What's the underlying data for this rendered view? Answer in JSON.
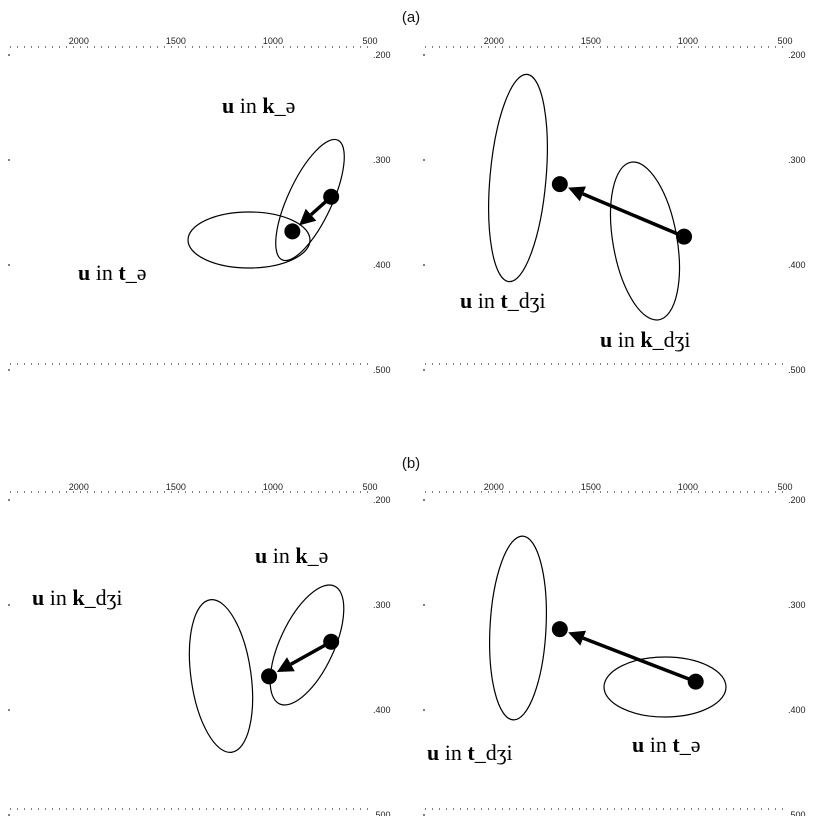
{
  "chart_data": [
    {
      "type": "scatter",
      "panel_label": "(a)",
      "x_ticks": [
        "2000",
        "1500",
        "1000",
        "500"
      ],
      "y_ticks": [
        ".200",
        ".300",
        ".400",
        ".500"
      ],
      "xlim": [
        2200,
        500
      ],
      "ylim": [
        200,
        500
      ],
      "subplots": [
        {
          "points": [
            {
              "name": "u in k_ə",
              "x": 700,
              "y": 335,
              "label": {
                "pre": "",
                "bold": "u",
                "mid": " in ",
                "bold2": "k",
                "post": "_ə"
              }
            },
            {
              "name": "u in t_ə",
              "x": 900,
              "y": 368,
              "label": {
                "pre": "",
                "bold": "u",
                "mid": " in ",
                "bold2": "t",
                "post": "_ə"
              }
            }
          ],
          "arrow": {
            "from": "u in k_ə",
            "to": "u in t_ə"
          }
        },
        {
          "points": [
            {
              "name": "u in t_dʒi",
              "x": 1660,
              "y": 323,
              "label": {
                "pre": "",
                "bold": "u",
                "mid": " in ",
                "bold2": "t",
                "post": "_dʒi"
              }
            },
            {
              "name": "u in k_dʒi",
              "x": 1020,
              "y": 373,
              "label": {
                "pre": "",
                "bold": "u",
                "mid": " in ",
                "bold2": "k",
                "post": "_dʒi"
              }
            }
          ],
          "arrow": {
            "from": "u in k_dʒi",
            "to": "u in t_dʒi"
          }
        }
      ]
    },
    {
      "type": "scatter",
      "panel_label": "(b)",
      "x_ticks": [
        "2000",
        "1500",
        "1000",
        "500"
      ],
      "y_ticks": [
        ".200",
        ".300",
        ".400",
        ".500"
      ],
      "xlim": [
        2200,
        500
      ],
      "ylim": [
        200,
        500
      ],
      "subplots": [
        {
          "points": [
            {
              "name": "u in k_ə",
              "x": 700,
              "y": 335,
              "label": {
                "pre": "",
                "bold": "u",
                "mid": " in ",
                "bold2": "k",
                "post": "_ə"
              }
            },
            {
              "name": "u in k_dʒi",
              "x": 1020,
              "y": 368,
              "label": {
                "pre": "",
                "bold": "u",
                "mid": " in ",
                "bold2": "k",
                "post": "_dʒi"
              }
            }
          ],
          "arrow": {
            "from": "u in k_ə",
            "to": "u in k_dʒi"
          }
        },
        {
          "points": [
            {
              "name": "u in t_dʒi",
              "x": 1660,
              "y": 323,
              "label": {
                "pre": "",
                "bold": "u",
                "mid": " in ",
                "bold2": "t",
                "post": "_dʒi"
              }
            },
            {
              "name": "u in t_ə",
              "x": 960,
              "y": 373,
              "label": {
                "pre": "",
                "bold": "u",
                "mid": " in ",
                "bold2": "t",
                "post": "_ə"
              }
            }
          ],
          "arrow": {
            "from": "u in t_ə",
            "to": "u in t_dʒi"
          }
        }
      ]
    }
  ],
  "colors": {
    "ink": "#000000",
    "background": "#ffffff"
  }
}
